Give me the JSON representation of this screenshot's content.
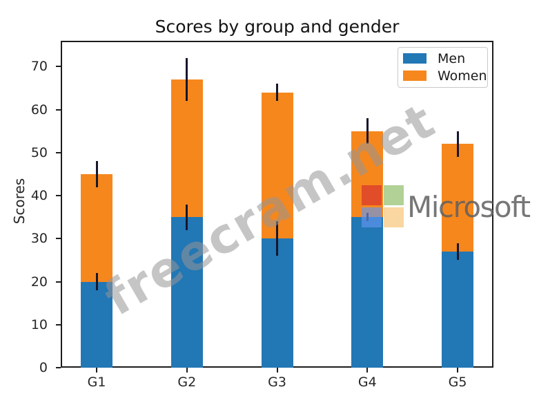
{
  "chart_data": {
    "type": "bar",
    "stacked": true,
    "title": "Scores by group and gender",
    "xlabel": "",
    "ylabel": "Scores",
    "categories": [
      "G1",
      "G2",
      "G3",
      "G4",
      "G5"
    ],
    "series": [
      {
        "name": "Men",
        "color": "#2277b5",
        "values": [
          20,
          35,
          30,
          35,
          27
        ],
        "std": [
          2,
          3,
          4,
          1,
          2
        ]
      },
      {
        "name": "Women",
        "color": "#f6871d",
        "values": [
          25,
          32,
          34,
          20,
          25
        ],
        "std": [
          3,
          5,
          2,
          3,
          3
        ]
      }
    ],
    "stack_totals": [
      45,
      67,
      64,
      55,
      52
    ],
    "error_bar_color": "#16162d",
    "ylim": [
      0,
      76
    ],
    "yticks": [
      0,
      10,
      20,
      30,
      40,
      50,
      60,
      70
    ],
    "grid": false,
    "legend": {
      "position": "upper right",
      "entries": [
        "Men",
        "Women"
      ]
    }
  },
  "watermarks": {
    "freecram": {
      "text": "freecram.net",
      "color": "rgba(150,150,150,0.55)",
      "rotation_deg": -30
    },
    "microsoft": {
      "text": "Microsoft",
      "squares": [
        {
          "name": "red-square",
          "color": "rgba(221,66,43,0.85)"
        },
        {
          "name": "green-square",
          "color": "rgba(101,163,45,0.5)"
        },
        {
          "name": "blue-square",
          "color": "rgba(100,150,240,0.65)"
        },
        {
          "name": "yellow-square",
          "color": "rgba(244,164,44,0.45)"
        }
      ]
    }
  }
}
